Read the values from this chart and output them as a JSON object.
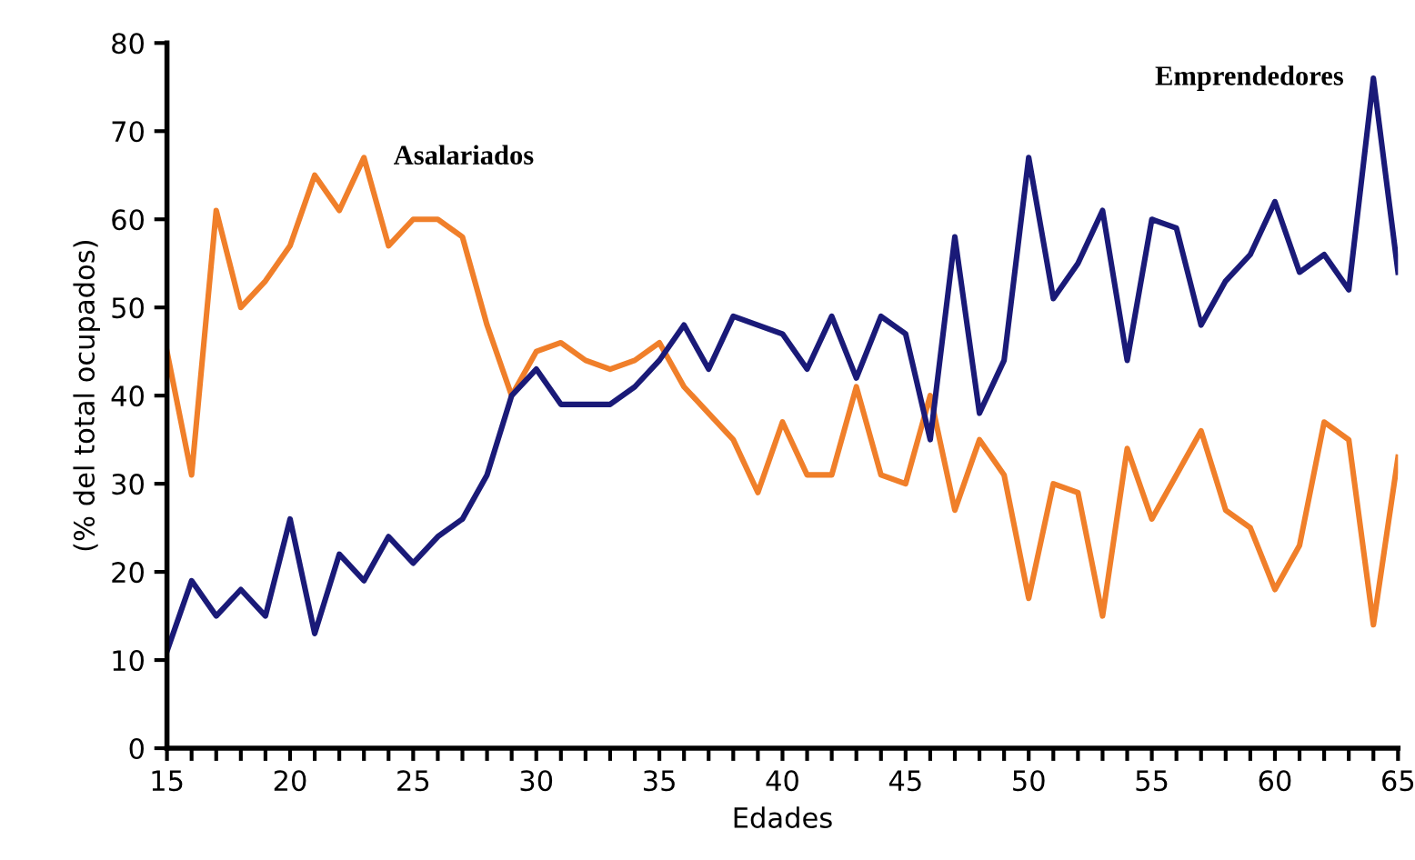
{
  "chart_data": {
    "type": "line",
    "xlabel": "Edades",
    "ylabel": "(% del total ocupados)",
    "x": [
      15,
      16,
      17,
      18,
      19,
      20,
      21,
      22,
      23,
      24,
      25,
      26,
      27,
      28,
      29,
      30,
      31,
      32,
      33,
      34,
      35,
      36,
      37,
      38,
      39,
      40,
      41,
      42,
      43,
      44,
      45,
      46,
      47,
      48,
      49,
      50,
      51,
      52,
      53,
      54,
      55,
      56,
      57,
      58,
      59,
      60,
      61,
      62,
      63,
      64,
      65
    ],
    "series": [
      {
        "name": "Asalariados",
        "color": "#f07f2a",
        "values": [
          45,
          31,
          61,
          50,
          53,
          57,
          65,
          61,
          67,
          57,
          60,
          60,
          58,
          48,
          40,
          45,
          46,
          44,
          43,
          44,
          46,
          41,
          38,
          35,
          29,
          37,
          31,
          31,
          41,
          31,
          30,
          40,
          27,
          35,
          31,
          17,
          30,
          29,
          15,
          34,
          26,
          31,
          36,
          27,
          25,
          18,
          23,
          37,
          35,
          14,
          33
        ]
      },
      {
        "name": "Emprendedores",
        "color": "#1a1a78",
        "values": [
          11,
          19,
          15,
          18,
          15,
          26,
          13,
          22,
          19,
          24,
          21,
          24,
          26,
          31,
          40,
          43,
          39,
          39,
          39,
          41,
          44,
          48,
          43,
          49,
          48,
          47,
          43,
          49,
          42,
          49,
          47,
          35,
          58,
          38,
          44,
          67,
          51,
          55,
          61,
          44,
          60,
          59,
          48,
          53,
          56,
          62,
          54,
          56,
          52,
          76,
          54
        ]
      }
    ],
    "xlim": [
      15,
      65
    ],
    "xticks": [
      15,
      {
        "value": 16,
        "label": null
      },
      {
        "value": 17,
        "label": null
      },
      {
        "value": 18,
        "label": null
      },
      {
        "value": 19,
        "label": null
      },
      20,
      {
        "value": 21,
        "label": null
      },
      {
        "value": 22,
        "label": null
      },
      {
        "value": 23,
        "label": null
      },
      {
        "value": 24,
        "label": null
      },
      25,
      {
        "value": 26,
        "label": null
      },
      {
        "value": 27,
        "label": null
      },
      {
        "value": 28,
        "label": null
      },
      {
        "value": 29,
        "label": null
      },
      30,
      {
        "value": 31,
        "label": null
      },
      {
        "value": 32,
        "label": null
      },
      {
        "value": 33,
        "label": null
      },
      {
        "value": 34,
        "label": null
      },
      35,
      {
        "value": 36,
        "label": null
      },
      {
        "value": 37,
        "label": null
      },
      {
        "value": 38,
        "label": null
      },
      {
        "value": 39,
        "label": null
      },
      40,
      {
        "value": 41,
        "label": null
      },
      {
        "value": 42,
        "label": null
      },
      {
        "value": 43,
        "label": null
      },
      {
        "value": 44,
        "label": null
      },
      45,
      {
        "value": 46,
        "label": null
      },
      {
        "value": 47,
        "label": null
      },
      {
        "value": 48,
        "label": null
      },
      {
        "value": 49,
        "label": null
      },
      50,
      {
        "value": 51,
        "label": null
      },
      {
        "value": 52,
        "label": null
      },
      {
        "value": 53,
        "label": null
      },
      {
        "value": 54,
        "label": null
      },
      55,
      {
        "value": 56,
        "label": null
      },
      {
        "value": 57,
        "label": null
      },
      {
        "value": 58,
        "label": null
      },
      {
        "value": 59,
        "label": null
      },
      60,
      {
        "value": 61,
        "label": null
      },
      {
        "value": 62,
        "label": null
      },
      {
        "value": 63,
        "label": null
      },
      {
        "value": 64,
        "label": null
      },
      65
    ],
    "ylim": [
      0,
      80
    ],
    "yticks": [
      0,
      10,
      20,
      30,
      40,
      50,
      60,
      70,
      80
    ],
    "grid": false,
    "legend": false,
    "marker": "none",
    "line_style": "solid"
  }
}
